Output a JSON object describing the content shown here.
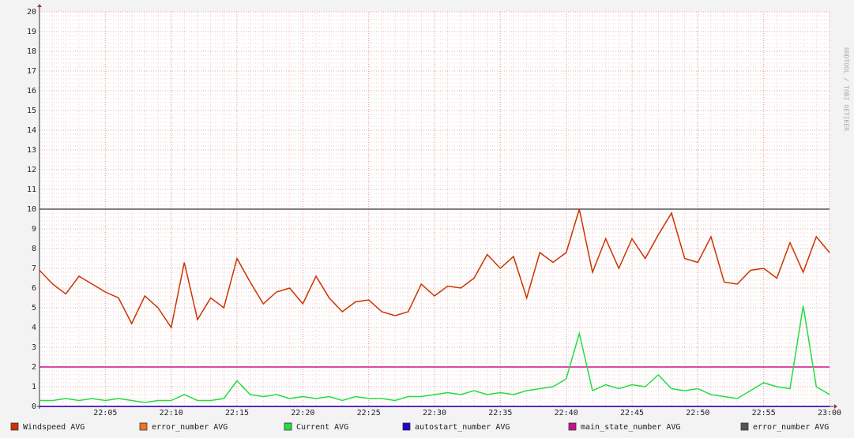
{
  "chart_data": {
    "type": "line",
    "watermark": "RRDTOOL / TOBI OETIKER",
    "x": [
      "22:00",
      "22:01",
      "22:02",
      "22:03",
      "22:04",
      "22:05",
      "22:06",
      "22:07",
      "22:08",
      "22:09",
      "22:10",
      "22:11",
      "22:12",
      "22:13",
      "22:14",
      "22:15",
      "22:16",
      "22:17",
      "22:18",
      "22:19",
      "22:20",
      "22:21",
      "22:22",
      "22:23",
      "22:24",
      "22:25",
      "22:26",
      "22:27",
      "22:28",
      "22:29",
      "22:30",
      "22:31",
      "22:32",
      "22:33",
      "22:34",
      "22:35",
      "22:36",
      "22:37",
      "22:38",
      "22:39",
      "22:40",
      "22:41",
      "22:42",
      "22:43",
      "22:44",
      "22:45",
      "22:46",
      "22:47",
      "22:48",
      "22:49",
      "22:50",
      "22:51",
      "22:52",
      "22:53",
      "22:54",
      "22:55",
      "22:56",
      "22:57",
      "22:58",
      "22:59",
      "23:00"
    ],
    "xlim": [
      "22:00",
      "23:00"
    ],
    "xticks": [
      "22:05",
      "22:10",
      "22:15",
      "22:20",
      "22:25",
      "22:30",
      "22:35",
      "22:40",
      "22:45",
      "22:50",
      "22:55",
      "23:00"
    ],
    "ylim": [
      0,
      20
    ],
    "yticks": [
      0,
      1,
      2,
      3,
      4,
      5,
      6,
      7,
      8,
      9,
      10,
      11,
      12,
      13,
      14,
      15,
      16,
      17,
      18,
      19,
      20
    ],
    "grid": true,
    "series": [
      {
        "name": "Windspeed AVG",
        "color": "#cc3300",
        "values": [
          6.9,
          6.2,
          5.7,
          6.6,
          6.2,
          5.8,
          5.5,
          4.2,
          5.6,
          5.0,
          4.0,
          7.3,
          4.4,
          5.5,
          5.0,
          7.5,
          6.3,
          5.2,
          5.8,
          6.0,
          5.2,
          6.6,
          5.5,
          4.8,
          5.3,
          5.4,
          4.8,
          4.6,
          4.8,
          6.2,
          5.6,
          6.1,
          6.0,
          6.5,
          7.7,
          7.0,
          7.6,
          5.5,
          7.8,
          7.3,
          7.8,
          10.0,
          6.8,
          8.5,
          7.0,
          8.5,
          7.5,
          8.7,
          9.8,
          7.5,
          7.3,
          8.6,
          6.3,
          6.2,
          6.9,
          7.0,
          6.5,
          8.3,
          6.8,
          8.6,
          7.8
        ]
      },
      {
        "name": "error_number AVG",
        "color": "#ee7722",
        "values": [
          0,
          0,
          0,
          0,
          0,
          0,
          0,
          0,
          0,
          0,
          0,
          0,
          0,
          0,
          0,
          0,
          0,
          0,
          0,
          0,
          0,
          0,
          0,
          0,
          0,
          0,
          0,
          0,
          0,
          0,
          0,
          0,
          0,
          0,
          0,
          0,
          0,
          0,
          0,
          0,
          0,
          0,
          0,
          0,
          0,
          0,
          0,
          0,
          0,
          0,
          0,
          0,
          0,
          0,
          0,
          0,
          0,
          0,
          0,
          0,
          0
        ]
      },
      {
        "name": "Current AVG",
        "color": "#22dd44",
        "values": [
          0.3,
          0.3,
          0.4,
          0.3,
          0.4,
          0.3,
          0.4,
          0.3,
          0.2,
          0.3,
          0.3,
          0.6,
          0.3,
          0.3,
          0.4,
          1.3,
          0.6,
          0.5,
          0.6,
          0.4,
          0.5,
          0.4,
          0.5,
          0.3,
          0.5,
          0.4,
          0.4,
          0.3,
          0.5,
          0.5,
          0.6,
          0.7,
          0.6,
          0.8,
          0.6,
          0.7,
          0.6,
          0.8,
          0.9,
          1.0,
          1.4,
          3.7,
          0.8,
          1.1,
          0.9,
          1.1,
          1.0,
          1.6,
          0.9,
          0.8,
          0.9,
          0.6,
          0.5,
          0.4,
          0.8,
          1.2,
          1.0,
          0.9,
          5.1,
          1.0,
          0.6
        ]
      },
      {
        "name": "autostart_number AVG",
        "color": "#2200cc",
        "values": [
          0,
          0,
          0,
          0,
          0,
          0,
          0,
          0,
          0,
          0,
          0,
          0,
          0,
          0,
          0,
          0,
          0,
          0,
          0,
          0,
          0,
          0,
          0,
          0,
          0,
          0,
          0,
          0,
          0,
          0,
          0,
          0,
          0,
          0,
          0,
          0,
          0,
          0,
          0,
          0,
          0,
          0,
          0,
          0,
          0,
          0,
          0,
          0,
          0,
          0,
          0,
          0,
          0,
          0,
          0,
          0,
          0,
          0,
          0,
          0,
          0
        ]
      },
      {
        "name": "main_state_number AVG",
        "color": "#cc1188",
        "values": [
          2,
          2,
          2,
          2,
          2,
          2,
          2,
          2,
          2,
          2,
          2,
          2,
          2,
          2,
          2,
          2,
          2,
          2,
          2,
          2,
          2,
          2,
          2,
          2,
          2,
          2,
          2,
          2,
          2,
          2,
          2,
          2,
          2,
          2,
          2,
          2,
          2,
          2,
          2,
          2,
          2,
          2,
          2,
          2,
          2,
          2,
          2,
          2,
          2,
          2,
          2,
          2,
          2,
          2,
          2,
          2,
          2,
          2,
          2,
          2,
          2
        ]
      },
      {
        "name": "error_number AVG",
        "color": "#555555",
        "values": [
          10,
          10,
          10,
          10,
          10,
          10,
          10,
          10,
          10,
          10,
          10,
          10,
          10,
          10,
          10,
          10,
          10,
          10,
          10,
          10,
          10,
          10,
          10,
          10,
          10,
          10,
          10,
          10,
          10,
          10,
          10,
          10,
          10,
          10,
          10,
          10,
          10,
          10,
          10,
          10,
          10,
          10,
          10,
          10,
          10,
          10,
          10,
          10,
          10,
          10,
          10,
          10,
          10,
          10,
          10,
          10,
          10,
          10,
          10,
          10,
          10
        ]
      }
    ]
  }
}
